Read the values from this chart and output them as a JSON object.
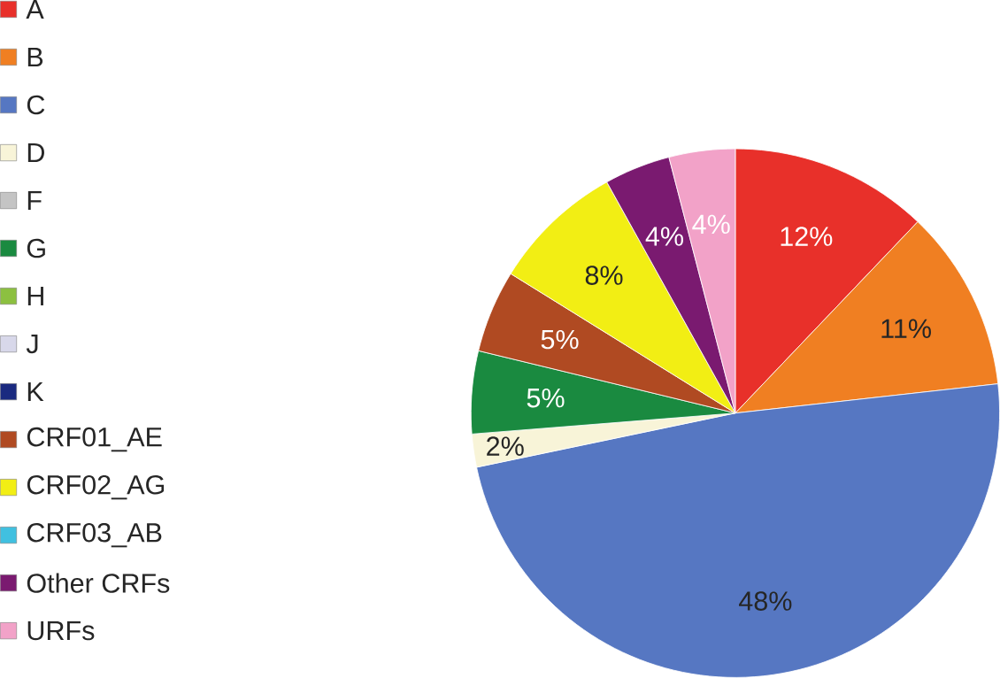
{
  "chart_data": {
    "type": "pie",
    "categories": [
      "A",
      "B",
      "C",
      "D",
      "F",
      "G",
      "H",
      "J",
      "K",
      "CRF01_AE",
      "CRF02_AG",
      "CRF03_AB",
      "Other CRFs",
      "URFs"
    ],
    "values": [
      12,
      11,
      48,
      2,
      null,
      5,
      null,
      null,
      null,
      5,
      8,
      null,
      4,
      4
    ],
    "colors": [
      "#e8302a",
      "#f07f22",
      "#5677c2",
      "#f8f4d8",
      "#c4c4c4",
      "#1a8a40",
      "#8cc040",
      "#d8d8ea",
      "#1a2a80",
      "#b04a22",
      "#f2ee14",
      "#40c0e0",
      "#7a1a70",
      "#f2a2c8"
    ],
    "value_labels": [
      "12%",
      "11%",
      "48%",
      "2%",
      null,
      "5%",
      null,
      null,
      null,
      "5%",
      "8%",
      null,
      "4%",
      "4%"
    ],
    "legend": "left"
  }
}
